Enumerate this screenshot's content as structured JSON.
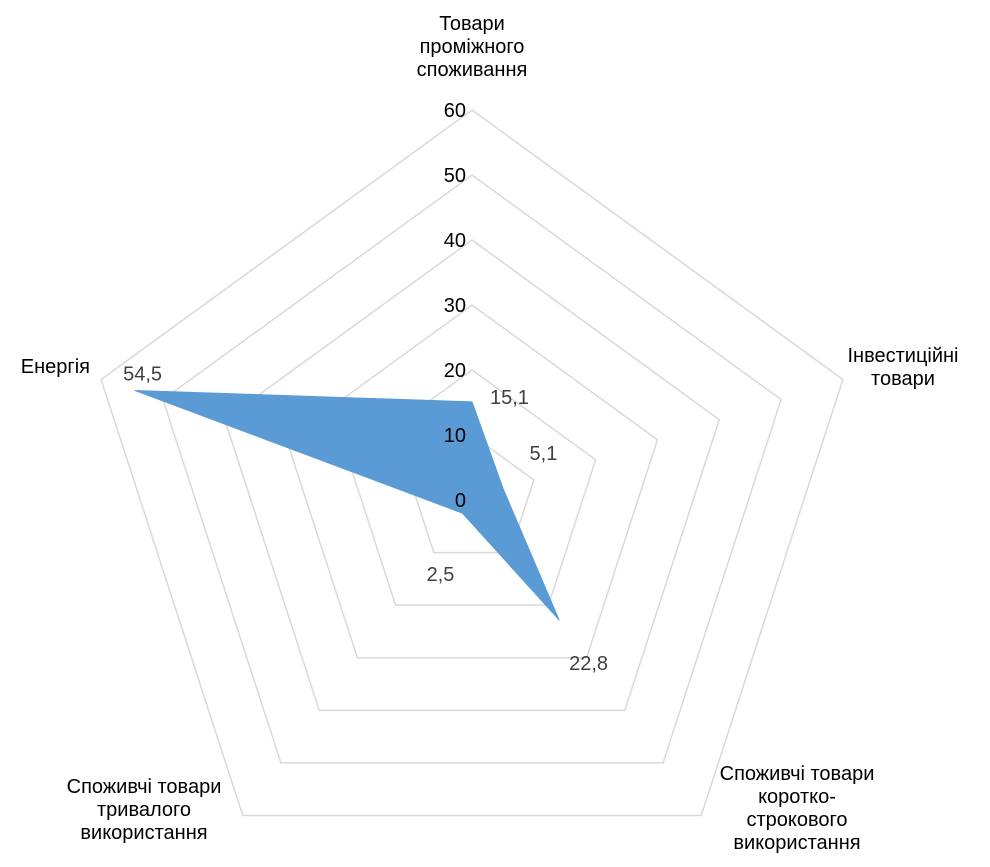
{
  "chart_data": {
    "type": "radar",
    "categories": [
      [
        "Товари",
        "проміжного",
        "споживання"
      ],
      [
        "Інвестиційні",
        "товари"
      ],
      [
        "Споживчі товари",
        "коротко-",
        "строкового",
        "використання"
      ],
      [
        "Споживчі товари",
        "тривалого",
        "використання"
      ],
      [
        "Енергія"
      ]
    ],
    "series": [
      {
        "values": [
          15.1,
          5.1,
          22.8,
          2.5,
          54.5
        ],
        "labels": [
          "15,1",
          "5,1",
          "22,8",
          "2,5",
          "54,5"
        ],
        "color": "#5B9BD5"
      }
    ],
    "rlim": [
      0,
      60
    ],
    "ticks": [
      0,
      10,
      20,
      30,
      40,
      50,
      60
    ],
    "tick_labels": [
      "0",
      "10",
      "20",
      "30",
      "40",
      "50",
      "60"
    ],
    "grid": true,
    "grid_color": "#d9d9d9"
  }
}
